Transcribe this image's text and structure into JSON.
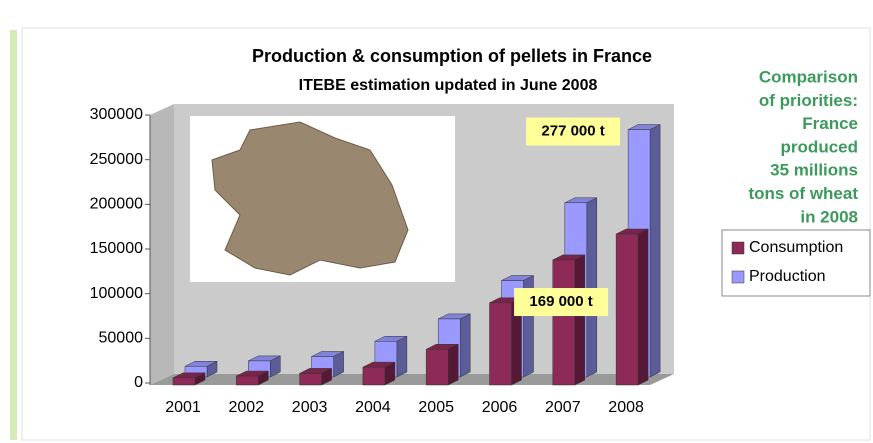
{
  "chart_data": {
    "type": "bar3d",
    "title": "Production & consumption of pellets in France",
    "subtitle": "ITEBE estimation updated in June 2008",
    "categories": [
      "2001",
      "2002",
      "2003",
      "2004",
      "2005",
      "2006",
      "2007",
      "2008"
    ],
    "series": [
      {
        "name": "Consumption",
        "color": "#8e2a58",
        "values": [
          8000,
          10000,
          13000,
          20000,
          40000,
          92000,
          140000,
          169000
        ],
        "value_labels": [
          null,
          null,
          null,
          null,
          null,
          null,
          null,
          "169 000 t"
        ]
      },
      {
        "name": "Production",
        "color": "#9999ff",
        "values": [
          12000,
          18000,
          23000,
          40000,
          65000,
          108000,
          195000,
          277000
        ],
        "value_labels": [
          null,
          null,
          null,
          null,
          null,
          null,
          null,
          "277 000 t"
        ]
      }
    ],
    "ylim": [
      0,
      300000
    ],
    "yticks": [
      0,
      50000,
      100000,
      150000,
      200000,
      250000,
      300000
    ],
    "annotation": [
      "Comparison",
      "of priorities:",
      "France",
      "produced",
      "35 millions",
      "tons of wheat",
      "in 2008"
    ],
    "legend": "right"
  }
}
